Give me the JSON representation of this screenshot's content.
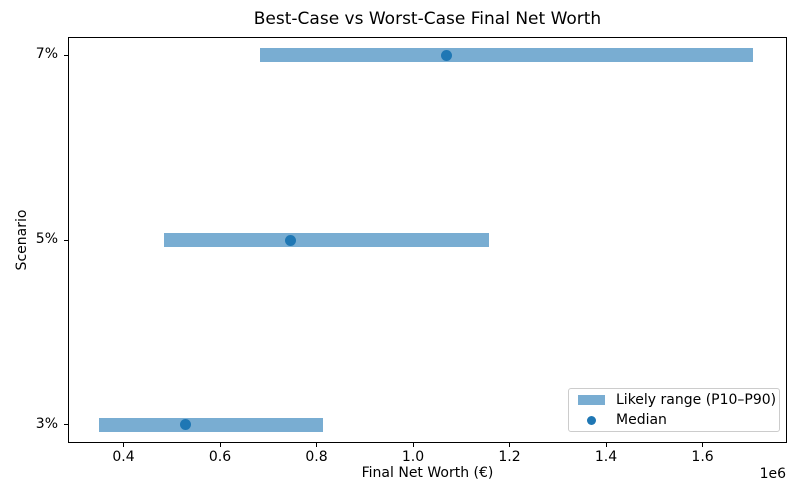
{
  "chart_data": {
    "type": "bar",
    "subtype": "horizontal-range",
    "title": "Best-Case vs Worst-Case Final Net Worth",
    "xlabel": "Final Net Worth (€)",
    "ylabel": "Scenario",
    "offset_label": "1e6",
    "grid": false,
    "xlim": [
      285000,
      1775000
    ],
    "xticks": [
      400000,
      600000,
      800000,
      1000000,
      1200000,
      1400000,
      1600000
    ],
    "xtick_labels": [
      "0.4",
      "0.6",
      "0.8",
      "1.0",
      "1.2",
      "1.4",
      "1.6"
    ],
    "categories": [
      "7%",
      "5%",
      "3%"
    ],
    "rows": [
      {
        "scenario": "7%",
        "p10": 682000,
        "median": 1070000,
        "p90": 1705000
      },
      {
        "scenario": "5%",
        "p10": 483000,
        "median": 747000,
        "p90": 1158000
      },
      {
        "scenario": "3%",
        "p10": 350000,
        "median": 529000,
        "p90": 813000
      }
    ],
    "legend": {
      "position": "lower right",
      "entries": [
        {
          "label": "Likely range (P10–P90)",
          "marker": "patch",
          "color": "rgba(31, 119, 180, 0.6)"
        },
        {
          "label": "Median",
          "marker": "dot",
          "color": "#1f77b4"
        }
      ]
    },
    "colors": {
      "range_bar": "rgba(31, 119, 180, 0.6)",
      "median_dot": "#1f77b4",
      "spine": "#000000"
    }
  }
}
